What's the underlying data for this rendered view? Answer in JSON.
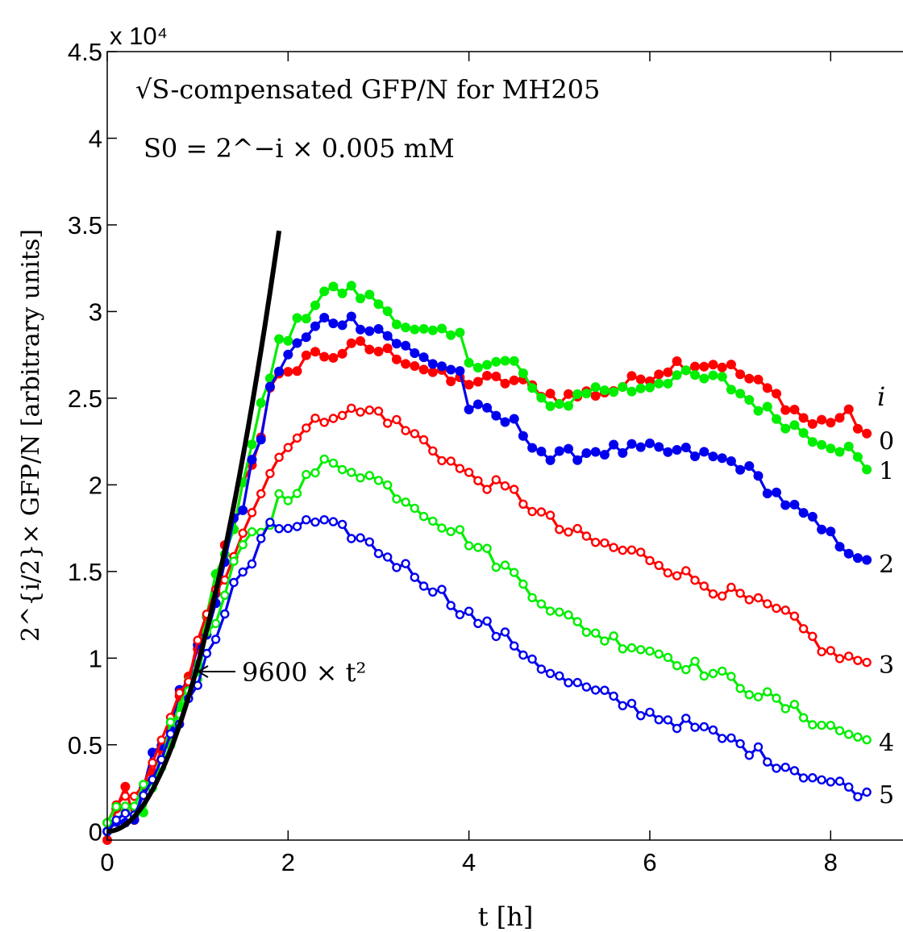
{
  "chart_data": {
    "type": "line",
    "title": "√S-compensated GFP/N for MH205",
    "subtitle": "S0 = 2^−i × 0.005 mM",
    "annotation": "9600 × t²",
    "exponent_label": "x 10⁴",
    "xlabel": "t [h]",
    "ylabel": "2^{i/2}× GFP/N [arbitrary units]",
    "xlim": [
      0,
      8.8
    ],
    "ylim": [
      -0.05,
      4.5
    ],
    "y_scale_factor": 10000,
    "xticks": [
      0,
      2,
      4,
      6,
      8
    ],
    "ytick_labels": [
      "0",
      "0.5",
      "1",
      "1.5",
      "2",
      "2.5",
      "3",
      "3.5",
      "4",
      "4.5"
    ],
    "legend_title": "i",
    "grid": false,
    "fit_curve": {
      "name": "9600 × t²",
      "coefficient": 0.96,
      "t_max": 1.9,
      "color": "#000000"
    },
    "series": [
      {
        "name": "0",
        "color": "#ff0000",
        "marker": "filled",
        "keypoints": [
          [
            0,
            -0.05
          ],
          [
            0.2,
            0.28
          ],
          [
            0.3,
            0.05
          ],
          [
            0.6,
            0.45
          ],
          [
            1.0,
            1.0
          ],
          [
            1.5,
            2.0
          ],
          [
            1.8,
            2.5
          ],
          [
            2.2,
            2.75
          ],
          [
            2.5,
            2.75
          ],
          [
            2.8,
            2.8
          ],
          [
            3.2,
            2.75
          ],
          [
            3.8,
            2.6
          ],
          [
            4.5,
            2.6
          ],
          [
            5.0,
            2.5
          ],
          [
            5.6,
            2.55
          ],
          [
            6.3,
            2.7
          ],
          [
            6.8,
            2.7
          ],
          [
            7.3,
            2.55
          ],
          [
            7.8,
            2.35
          ],
          [
            8.2,
            2.4
          ],
          [
            8.45,
            2.27
          ]
        ]
      },
      {
        "name": "1",
        "color": "#00ee00",
        "marker": "filled",
        "keypoints": [
          [
            0,
            0.05
          ],
          [
            0.3,
            0.08
          ],
          [
            0.6,
            0.35
          ],
          [
            1.0,
            1.0
          ],
          [
            1.5,
            2.0
          ],
          [
            1.9,
            2.8
          ],
          [
            2.4,
            3.12
          ],
          [
            2.7,
            3.12
          ],
          [
            3.0,
            3.05
          ],
          [
            3.4,
            2.88
          ],
          [
            3.9,
            2.85
          ],
          [
            4.0,
            2.72
          ],
          [
            4.5,
            2.7
          ],
          [
            4.9,
            2.42
          ],
          [
            5.3,
            2.55
          ],
          [
            5.8,
            2.55
          ],
          [
            6.3,
            2.63
          ],
          [
            6.8,
            2.6
          ],
          [
            7.3,
            2.42
          ],
          [
            7.8,
            2.28
          ],
          [
            8.2,
            2.2
          ],
          [
            8.45,
            2.06
          ]
        ]
      },
      {
        "name": "2",
        "color": "#0000ee",
        "marker": "filled",
        "keypoints": [
          [
            0,
            0.0
          ],
          [
            0.3,
            0.1
          ],
          [
            0.5,
            0.4
          ],
          [
            1.0,
            1.0
          ],
          [
            1.5,
            1.9
          ],
          [
            1.9,
            2.7
          ],
          [
            2.4,
            2.95
          ],
          [
            2.7,
            2.95
          ],
          [
            3.0,
            2.9
          ],
          [
            3.4,
            2.75
          ],
          [
            3.9,
            2.65
          ],
          [
            4.0,
            2.45
          ],
          [
            4.5,
            2.35
          ],
          [
            4.9,
            2.15
          ],
          [
            5.4,
            2.2
          ],
          [
            6.0,
            2.2
          ],
          [
            6.5,
            2.18
          ],
          [
            7.0,
            2.12
          ],
          [
            7.5,
            1.9
          ],
          [
            8.0,
            1.7
          ],
          [
            8.45,
            1.55
          ]
        ]
      },
      {
        "name": "3",
        "color": "#ff0000",
        "marker": "open",
        "keypoints": [
          [
            0,
            0.05
          ],
          [
            0.5,
            0.35
          ],
          [
            1.0,
            1.05
          ],
          [
            1.5,
            1.8
          ],
          [
            2.0,
            2.25
          ],
          [
            2.5,
            2.42
          ],
          [
            3.0,
            2.42
          ],
          [
            3.5,
            2.25
          ],
          [
            4.0,
            2.05
          ],
          [
            4.5,
            1.95
          ],
          [
            5.0,
            1.75
          ],
          [
            5.5,
            1.65
          ],
          [
            6.0,
            1.58
          ],
          [
            6.5,
            1.45
          ],
          [
            7.0,
            1.35
          ],
          [
            7.5,
            1.25
          ],
          [
            8.0,
            1.02
          ],
          [
            8.45,
            0.97
          ]
        ]
      },
      {
        "name": "4",
        "color": "#00ee00",
        "marker": "open",
        "keypoints": [
          [
            0,
            0.05
          ],
          [
            0.5,
            0.3
          ],
          [
            1.0,
            0.95
          ],
          [
            1.5,
            1.6
          ],
          [
            1.9,
            1.9
          ],
          [
            2.4,
            2.12
          ],
          [
            2.7,
            2.1
          ],
          [
            3.0,
            2.02
          ],
          [
            3.5,
            1.85
          ],
          [
            4.0,
            1.68
          ],
          [
            4.5,
            1.48
          ],
          [
            5.0,
            1.25
          ],
          [
            5.5,
            1.12
          ],
          [
            6.0,
            1.05
          ],
          [
            6.5,
            0.95
          ],
          [
            7.0,
            0.85
          ],
          [
            7.5,
            0.72
          ],
          [
            8.0,
            0.6
          ],
          [
            8.45,
            0.52
          ]
        ]
      },
      {
        "name": "5",
        "color": "#0000ee",
        "marker": "open",
        "keypoints": [
          [
            0,
            0.0
          ],
          [
            0.5,
            0.25
          ],
          [
            1.0,
            0.9
          ],
          [
            1.5,
            1.5
          ],
          [
            1.9,
            1.75
          ],
          [
            2.3,
            1.78
          ],
          [
            2.7,
            1.72
          ],
          [
            3.0,
            1.62
          ],
          [
            3.5,
            1.45
          ],
          [
            4.0,
            1.25
          ],
          [
            4.5,
            1.08
          ],
          [
            5.0,
            0.88
          ],
          [
            5.5,
            0.78
          ],
          [
            6.0,
            0.68
          ],
          [
            6.5,
            0.6
          ],
          [
            7.0,
            0.5
          ],
          [
            7.5,
            0.38
          ],
          [
            8.0,
            0.28
          ],
          [
            8.45,
            0.22
          ]
        ]
      }
    ]
  }
}
